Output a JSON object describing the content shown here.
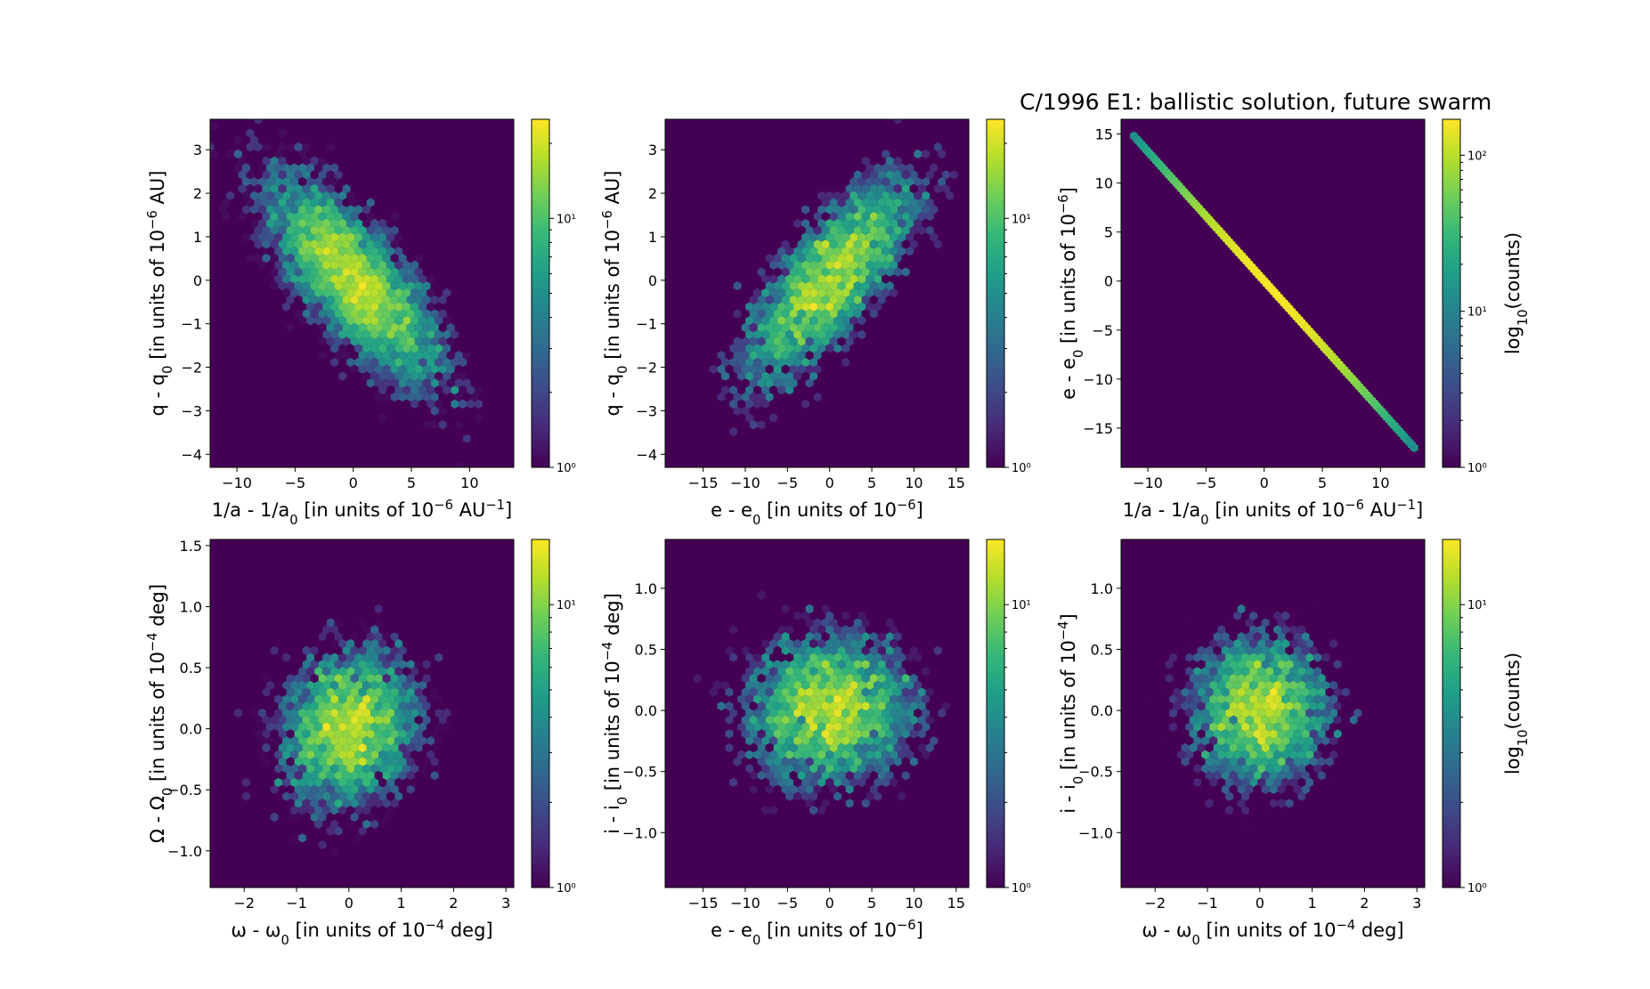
{
  "figure": {
    "title": "C/1996 E1:  ballistic solution, future swarm",
    "colormap": [
      "#440154",
      "#482878",
      "#3e4989",
      "#31688e",
      "#26828e",
      "#1f9e89",
      "#35b779",
      "#6ece58",
      "#b5de2b",
      "#fde725"
    ],
    "background_color": "#440154"
  },
  "chart_data": [
    {
      "type": "heatmap",
      "plot": "hexbin",
      "xlabel": "1/a - 1/a0 [in units of 10^-6 AU^-1]",
      "ylabel": "q - q0 [in units of 10^-6 AU]",
      "xlim": [
        -12.3,
        13.8
      ],
      "ylim": [
        -4.3,
        3.7
      ],
      "xticks": [
        -10,
        -5,
        0,
        5,
        10
      ],
      "yticks": [
        -4,
        -3,
        -2,
        -1,
        0,
        1,
        2,
        3
      ],
      "xtick_labels": [
        "−10",
        "−5",
        "0",
        "5",
        "10"
      ],
      "ytick_labels": [
        "−4",
        "−3",
        "−2",
        "−1",
        "0",
        "1",
        "2",
        "3"
      ],
      "distribution": {
        "x_mean": 0,
        "x_std": 4.0,
        "y_mean": 0,
        "y_std": 1.25,
        "correlation": -0.75
      },
      "colorbar": {
        "scale": "log",
        "min": 1,
        "max": 25,
        "ticks": [
          1,
          10
        ],
        "tick_labels": [
          "10⁰",
          "10¹"
        ],
        "label": ""
      }
    },
    {
      "type": "heatmap",
      "plot": "hexbin",
      "xlabel": "e - e0 [in units of 10^-6]",
      "ylabel": "q - q0 [in units of 10^-6 AU]",
      "xlim": [
        -19.5,
        16.5
      ],
      "ylim": [
        -4.3,
        3.7
      ],
      "xticks": [
        -15,
        -10,
        -5,
        0,
        5,
        10,
        15
      ],
      "yticks": [
        -4,
        -3,
        -2,
        -1,
        0,
        1,
        2,
        3
      ],
      "xtick_labels": [
        "−15",
        "−10",
        "−5",
        "0",
        "5",
        "10",
        "15"
      ],
      "ytick_labels": [
        "−4",
        "−3",
        "−2",
        "−1",
        "0",
        "1",
        "2",
        "3"
      ],
      "distribution": {
        "x_mean": 0,
        "x_std": 5.3,
        "y_mean": 0,
        "y_std": 1.25,
        "correlation": 0.75
      },
      "colorbar": {
        "scale": "log",
        "min": 1,
        "max": 25,
        "ticks": [
          1,
          10
        ],
        "tick_labels": [
          "10⁰",
          "10¹"
        ],
        "label": ""
      }
    },
    {
      "type": "heatmap",
      "plot": "hexbin-line",
      "xlabel": "1/a - 1/a0 [in units of 10^-6 AU^-1]",
      "ylabel": "e - e0 [in units of 10^-6]",
      "xlim": [
        -12.3,
        13.8
      ],
      "ylim": [
        -19.0,
        16.5
      ],
      "xticks": [
        -10,
        -5,
        0,
        5,
        10
      ],
      "yticks": [
        -15,
        -10,
        -5,
        0,
        5,
        10,
        15
      ],
      "xtick_labels": [
        "−10",
        "−5",
        "0",
        "5",
        "10"
      ],
      "ytick_labels": [
        "−15",
        "−10",
        "−5",
        "0",
        "5",
        "10",
        "15"
      ],
      "line": {
        "x_start": -11.2,
        "y_start": 14.8,
        "x_end": 12.9,
        "y_end": -17.0,
        "peak_counts": 160
      },
      "colorbar": {
        "scale": "log",
        "min": 1,
        "max": 170,
        "ticks": [
          1,
          10,
          100
        ],
        "tick_labels": [
          "10⁰",
          "10¹",
          "10²"
        ],
        "label": "log10(counts)"
      }
    },
    {
      "type": "heatmap",
      "plot": "hexbin",
      "xlabel": "ω - ω0 [in units of 10^-4 deg]",
      "ylabel": "Ω - Ω0 [in units of 10^-4 deg]",
      "xlim": [
        -2.65,
        3.15
      ],
      "ylim": [
        -1.3,
        1.55
      ],
      "xticks": [
        -2,
        -1,
        0,
        1,
        2,
        3
      ],
      "yticks": [
        -1.0,
        -0.5,
        0.0,
        0.5,
        1.0,
        1.5
      ],
      "xtick_labels": [
        "−2",
        "−1",
        "0",
        "1",
        "2",
        "3"
      ],
      "ytick_labels": [
        "−1.0",
        "−0.5",
        "0.0",
        "0.5",
        "1.0",
        "1.5"
      ],
      "distribution": {
        "x_mean": 0,
        "x_std": 0.7,
        "y_mean": 0,
        "y_std": 0.35,
        "correlation": 0.15
      },
      "colorbar": {
        "scale": "log",
        "min": 1,
        "max": 17,
        "ticks": [
          1,
          10
        ],
        "tick_labels": [
          "10⁰",
          "10¹"
        ],
        "label": ""
      }
    },
    {
      "type": "heatmap",
      "plot": "hexbin",
      "xlabel": "e - e0 [in units of 10^-6]",
      "ylabel": "i - i0 [in units of 10^-4 deg]",
      "xlim": [
        -19.5,
        16.5
      ],
      "ylim": [
        -1.45,
        1.4
      ],
      "xticks": [
        -15,
        -10,
        -5,
        0,
        5,
        10,
        15
      ],
      "yticks": [
        -1.0,
        -0.5,
        0.0,
        0.5,
        1.0
      ],
      "xtick_labels": [
        "−15",
        "−10",
        "−5",
        "0",
        "5",
        "10",
        "15"
      ],
      "ytick_labels": [
        "−1.0",
        "−0.5",
        "0.0",
        "0.5",
        "1.0"
      ],
      "distribution": {
        "x_mean": 0,
        "x_std": 5.3,
        "y_mean": 0,
        "y_std": 0.33,
        "correlation": 0.05
      },
      "colorbar": {
        "scale": "log",
        "min": 1,
        "max": 17,
        "ticks": [
          1,
          10
        ],
        "tick_labels": [
          "10⁰",
          "10¹"
        ],
        "label": ""
      }
    },
    {
      "type": "heatmap",
      "plot": "hexbin",
      "xlabel": "ω - ω0 [in units of 10^-4 deg]",
      "ylabel": "i - i0 [in units of 10^-4]",
      "xlim": [
        -2.65,
        3.15
      ],
      "ylim": [
        -1.45,
        1.4
      ],
      "xticks": [
        -2,
        -1,
        0,
        1,
        2,
        3
      ],
      "yticks": [
        -1.0,
        -0.5,
        0.0,
        0.5,
        1.0
      ],
      "xtick_labels": [
        "−2",
        "−1",
        "0",
        "1",
        "2",
        "3"
      ],
      "ytick_labels": [
        "−1.0",
        "−0.5",
        "0.0",
        "0.5",
        "1.0"
      ],
      "distribution": {
        "x_mean": 0,
        "x_std": 0.7,
        "y_mean": 0,
        "y_std": 0.33,
        "correlation": 0.0
      },
      "colorbar": {
        "scale": "log",
        "min": 1,
        "max": 17,
        "ticks": [
          1,
          10
        ],
        "tick_labels": [
          "10⁰",
          "10¹"
        ],
        "label": "log10(counts)"
      }
    }
  ]
}
